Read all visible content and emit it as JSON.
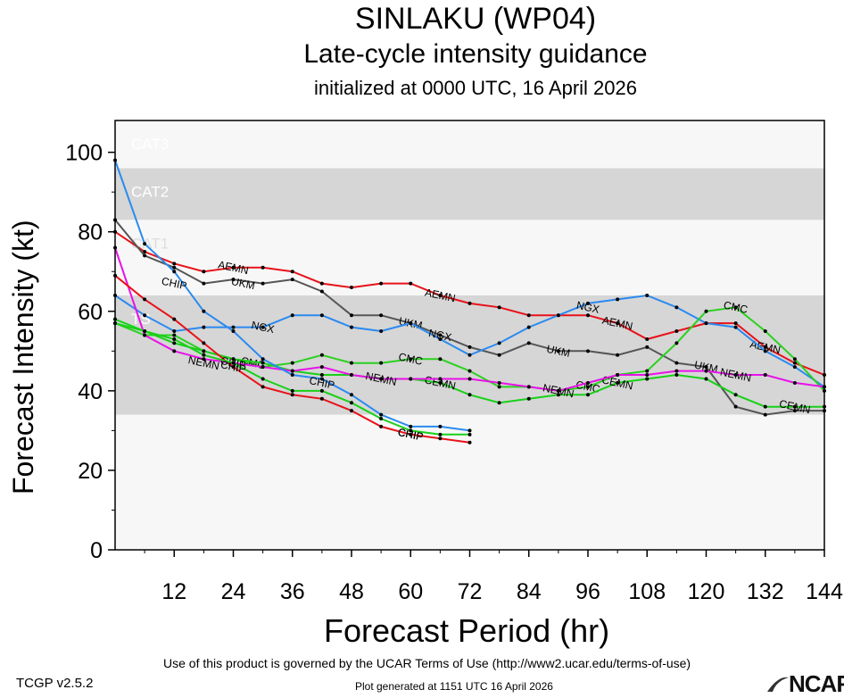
{
  "title": "SINLAKU (WP04)",
  "subtitle": "Late-cycle intensity guidance",
  "init_text": "initialized at 0000 UTC, 16 April 2026",
  "footer": {
    "terms": "Use of this product is governed by the UCAR Terms of Use (http://www2.ucar.edu/terms-of-use)",
    "version": "TCGP v2.5.2",
    "generated": "Plot generated at 1151 UTC   16 April 2026",
    "logo_text": "NCAR",
    "logo_icon": "ncar-logo-icon"
  },
  "chart_data": {
    "type": "line",
    "title": "SINLAKU (WP04)",
    "xlabel": "Forecast Period (hr)",
    "ylabel": "Forecast Intensity (kt)",
    "xlim": [
      0,
      144
    ],
    "ylim": [
      0,
      108
    ],
    "xticks": [
      12,
      24,
      36,
      48,
      60,
      72,
      84,
      96,
      108,
      120,
      132,
      144
    ],
    "yticks": [
      0,
      20,
      40,
      60,
      80,
      100
    ],
    "grid": false,
    "bands": [
      {
        "label": "TS",
        "from": 34,
        "to": 64,
        "color": "#d6d6d6"
      },
      {
        "label": "CAT1",
        "from": 64,
        "to": 83,
        "color": "#f7f7f7"
      },
      {
        "label": "CAT2",
        "from": 83,
        "to": 96,
        "color": "#d6d6d6"
      },
      {
        "label": "CAT3",
        "from": 96,
        "to": 108,
        "color": "#f7f7f7"
      }
    ],
    "series": [
      {
        "name": "AEMN",
        "color": "#e8121a",
        "x": [
          0,
          6,
          12,
          18,
          24,
          30,
          36,
          42,
          48,
          54,
          60,
          66,
          72,
          78,
          84,
          90,
          96,
          102,
          108,
          114,
          120,
          126,
          132,
          138,
          144
        ],
        "y": [
          80,
          75,
          72,
          70,
          71,
          71,
          70,
          67,
          66,
          67,
          67,
          64,
          62,
          61,
          59,
          59,
          59,
          57,
          53,
          55,
          57,
          57,
          51,
          47,
          44
        ],
        "labels": [
          [
            24,
            71
          ],
          [
            66,
            64
          ],
          [
            102,
            57
          ],
          [
            132,
            51
          ]
        ]
      },
      {
        "name": "UKM",
        "color": "#555555",
        "x": [
          0,
          6,
          12,
          18,
          24,
          30,
          36,
          42,
          48,
          54,
          60,
          66,
          72,
          78,
          84,
          90,
          96,
          102,
          108,
          114,
          120,
          126,
          132,
          138,
          144
        ],
        "y": [
          83,
          74,
          71,
          67,
          68,
          67,
          68,
          65,
          59,
          59,
          57,
          54,
          51,
          49,
          52,
          50,
          50,
          49,
          51,
          47,
          46,
          36,
          34,
          35,
          35
        ],
        "labels": [
          [
            26,
            67
          ],
          [
            60,
            57
          ],
          [
            90,
            50
          ],
          [
            120,
            46
          ]
        ]
      },
      {
        "name": "NGX",
        "color": "#2a8af0",
        "x": [
          0,
          6,
          12,
          18,
          24,
          30,
          36,
          42,
          48,
          54,
          60,
          66,
          72,
          78,
          84,
          90,
          96,
          102,
          108,
          114,
          120,
          126,
          132,
          138,
          144
        ],
        "y": [
          64,
          59,
          55,
          56,
          56,
          56,
          59,
          59,
          56,
          55,
          57,
          53,
          49,
          52,
          56,
          59,
          62,
          63,
          64,
          61,
          57,
          56,
          50,
          46,
          41
        ],
        "labels": [
          [
            30,
            56
          ],
          [
            66,
            54
          ],
          [
            96,
            61
          ]
        ]
      },
      {
        "name": "CMC",
        "color": "#2ad11f",
        "x": [
          0,
          6,
          12,
          18,
          24,
          30,
          36,
          42,
          48,
          54,
          60,
          66,
          72,
          78,
          84,
          90,
          96,
          102,
          108,
          114,
          120,
          126,
          132,
          138,
          144
        ],
        "y": [
          57,
          54,
          54,
          50,
          48,
          46,
          47,
          49,
          47,
          47,
          48,
          48,
          45,
          41,
          41,
          40,
          41,
          44,
          45,
          52,
          60,
          61,
          55,
          48,
          40
        ],
        "labels": [
          [
            28,
            47
          ],
          [
            60,
            48
          ],
          [
            96,
            41
          ],
          [
            126,
            61
          ]
        ]
      },
      {
        "name": "CEMN",
        "color": "#18d118",
        "x": [
          0,
          6,
          12,
          18,
          24,
          30,
          36,
          42,
          48,
          54,
          60,
          66,
          72,
          78,
          84,
          90,
          96,
          102,
          108,
          114,
          120,
          126,
          132,
          138,
          144
        ],
        "y": [
          57,
          55,
          52,
          50,
          48,
          47,
          45,
          44,
          44,
          43,
          43,
          42,
          39,
          37,
          38,
          39,
          39,
          42,
          43,
          44,
          43,
          39,
          36,
          36,
          36
        ],
        "labels": [
          [
            66,
            42
          ],
          [
            102,
            42
          ],
          [
            138,
            36
          ]
        ]
      },
      {
        "name": "NEMN",
        "color": "#e812e8",
        "x": [
          0,
          6,
          12,
          18,
          24,
          30,
          36,
          42,
          48,
          54,
          60,
          66,
          72,
          78,
          84,
          90,
          96,
          102,
          108,
          114,
          120,
          126,
          132,
          138,
          144
        ],
        "y": [
          76,
          54,
          50,
          48,
          47,
          46,
          45,
          46,
          44,
          43,
          43,
          43,
          43,
          42,
          41,
          40,
          42,
          44,
          44,
          45,
          45,
          44,
          44,
          42,
          41
        ],
        "labels": [
          [
            18,
            47
          ],
          [
            54,
            43
          ],
          [
            90,
            40
          ],
          [
            126,
            44
          ]
        ]
      },
      {
        "name": "CHIP",
        "color": "#2a8af0",
        "x": [
          0,
          6,
          12,
          18,
          24,
          30,
          36,
          42,
          48,
          54,
          60,
          66,
          72
        ],
        "y": [
          98,
          77,
          70,
          60,
          55,
          48,
          44,
          43,
          39,
          34,
          31,
          31,
          30
        ],
        "labels": [
          [
            12,
            67
          ],
          [
            42,
            42
          ],
          [
            60,
            29
          ]
        ]
      },
      {
        "name": "CHIP",
        "color": "#e8121a",
        "x": [
          0,
          6,
          12,
          18,
          24,
          30,
          36,
          42,
          48,
          54,
          60,
          66,
          72
        ],
        "y": [
          69,
          63,
          58,
          52,
          46,
          41,
          39,
          38,
          35,
          31,
          29,
          28,
          27
        ],
        "labels": [
          [
            24,
            47
          ],
          [
            60,
            29
          ]
        ]
      },
      {
        "name": "CHIP",
        "color": "#18d118",
        "x": [
          0,
          6,
          12,
          18,
          24,
          30,
          36,
          42,
          48,
          54,
          60,
          66,
          72
        ],
        "y": [
          58,
          55,
          53,
          49,
          47,
          43,
          40,
          40,
          37,
          33,
          30,
          29,
          29
        ],
        "labels": [
          [
            24,
            46
          ],
          [
            60,
            29
          ]
        ]
      }
    ]
  }
}
